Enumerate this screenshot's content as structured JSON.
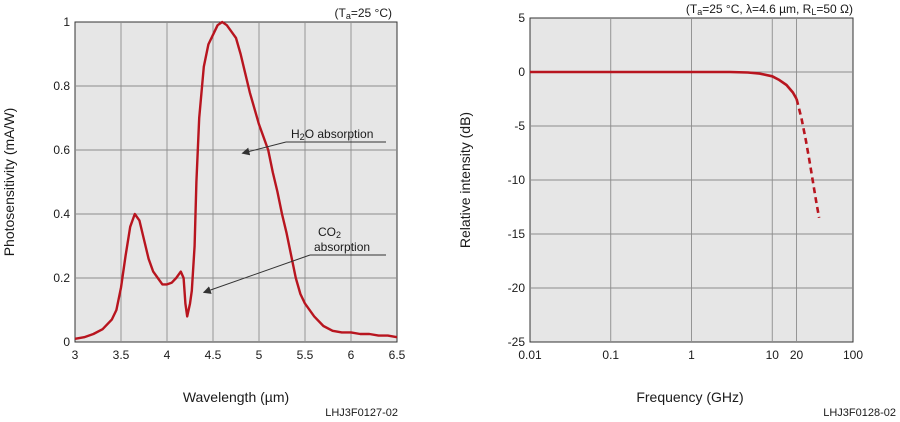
{
  "colors": {
    "curve": "#b8151f",
    "plot_bg": "#e6e6e6",
    "grid": "#8c8c8c"
  },
  "chart_data": [
    {
      "type": "line",
      "title": "",
      "condition": {
        "prefix": "(T",
        "sub": "a",
        "suffix": "=25 °C)"
      },
      "xlabel": "Wavelength (µm)",
      "ylabel": "Photosensitivity (mA/W)",
      "xlim": [
        3,
        6.5
      ],
      "ylim": [
        0,
        1
      ],
      "xticks": [
        3,
        3.5,
        4,
        4.5,
        5,
        5.5,
        6,
        6.5
      ],
      "xtick_labels": [
        "3",
        "3.5",
        "4",
        "4.5",
        "5",
        "5.5",
        "6",
        "6.5"
      ],
      "yticks": [
        0,
        0.2,
        0.4,
        0.6,
        0.8,
        1
      ],
      "ytick_labels": [
        "0",
        "0.2",
        "0.4",
        "0.6",
        "0.8",
        "1"
      ],
      "grid": true,
      "figure_code": "LHJ3F0127-02",
      "annotations": [
        {
          "main": "H",
          "sub": "2",
          "rest": "O absorption",
          "x": 4.82,
          "y": 0.59
        },
        {
          "line1_main": "CO",
          "line1_sub": "2",
          "line2": "absorption",
          "x": 4.4,
          "y": 0.155
        }
      ],
      "series": [
        {
          "x": [
            3.0,
            3.1,
            3.2,
            3.3,
            3.4,
            3.45,
            3.5,
            3.55,
            3.6,
            3.65,
            3.7,
            3.75,
            3.8,
            3.85,
            3.9,
            3.95,
            4.0,
            4.05,
            4.1,
            4.15,
            4.18,
            4.2,
            4.22,
            4.25,
            4.27,
            4.3,
            4.32,
            4.35,
            4.4,
            4.45,
            4.5,
            4.55,
            4.6,
            4.65,
            4.7,
            4.75,
            4.8,
            4.85,
            4.9,
            4.95,
            5.0,
            5.05,
            5.1,
            5.15,
            5.2,
            5.25,
            5.3,
            5.35,
            5.4,
            5.45,
            5.5,
            5.6,
            5.7,
            5.8,
            5.9,
            6.0,
            6.1,
            6.2,
            6.3,
            6.4,
            6.5
          ],
          "y": [
            0.01,
            0.015,
            0.025,
            0.04,
            0.07,
            0.1,
            0.17,
            0.27,
            0.36,
            0.4,
            0.38,
            0.32,
            0.26,
            0.22,
            0.2,
            0.18,
            0.18,
            0.185,
            0.2,
            0.22,
            0.2,
            0.12,
            0.08,
            0.12,
            0.16,
            0.3,
            0.5,
            0.7,
            0.86,
            0.93,
            0.96,
            0.99,
            1.0,
            0.99,
            0.97,
            0.95,
            0.9,
            0.84,
            0.78,
            0.73,
            0.68,
            0.64,
            0.6,
            0.53,
            0.47,
            0.4,
            0.34,
            0.27,
            0.2,
            0.15,
            0.12,
            0.08,
            0.05,
            0.035,
            0.03,
            0.03,
            0.025,
            0.025,
            0.02,
            0.02,
            0.015
          ]
        }
      ]
    },
    {
      "type": "line",
      "title": "",
      "condition": {
        "p1": "(T",
        "s1": "a",
        "p2": "=25 °C, λ=4.6 µm, R",
        "s2": "L",
        "p3": "=50 Ω)"
      },
      "xlabel": "Frequency (GHz)",
      "ylabel": "Relative intensity (dB)",
      "xscale": "log",
      "xlim": [
        0.01,
        100
      ],
      "ylim": [
        -25,
        5
      ],
      "xticks": [
        0.01,
        0.1,
        1,
        10,
        20,
        100
      ],
      "xtick_labels": [
        "0.01",
        "0.1",
        "1",
        "10",
        "20",
        "100"
      ],
      "yticks": [
        5,
        0,
        -5,
        -10,
        -15,
        -20,
        -25
      ],
      "ytick_labels": [
        "5",
        "0",
        "-5",
        "-10",
        "-15",
        "-20",
        "-25"
      ],
      "grid": true,
      "figure_code": "LHJ3F0128-02",
      "series": [
        {
          "style": "solid",
          "x": [
            0.01,
            0.1,
            1,
            3,
            5,
            7,
            10,
            12,
            15,
            18,
            20
          ],
          "y": [
            0,
            0,
            0,
            0,
            -0.05,
            -0.15,
            -0.4,
            -0.7,
            -1.2,
            -1.9,
            -2.5
          ]
        },
        {
          "style": "dashed",
          "x": [
            20,
            23,
            26,
            29,
            32,
            35,
            38
          ],
          "y": [
            -2.5,
            -4.3,
            -6.3,
            -8.3,
            -10.2,
            -12.0,
            -13.5
          ]
        }
      ]
    }
  ]
}
